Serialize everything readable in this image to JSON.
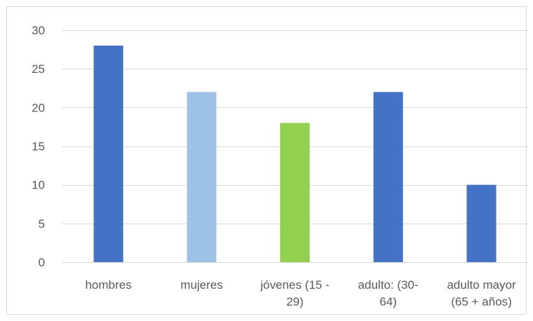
{
  "chart_data": {
    "type": "bar",
    "title": "",
    "xlabel": "",
    "ylabel": "",
    "categories": [
      [
        "hombres"
      ],
      [
        "mujeres"
      ],
      [
        "jóvenes (15 -",
        "29)"
      ],
      [
        "adulto: (30-",
        "64)"
      ],
      [
        "adulto mayor",
        "(65 + años)"
      ]
    ],
    "values": [
      28,
      22,
      18,
      22,
      10
    ],
    "colors": [
      "#4472c4",
      "#9dc3e6",
      "#92d050",
      "#4472c4",
      "#4472c4"
    ],
    "ylim": [
      0,
      30
    ],
    "yticks": [
      0,
      5,
      10,
      15,
      20,
      25,
      30
    ],
    "grid": true,
    "legend": "none"
  }
}
